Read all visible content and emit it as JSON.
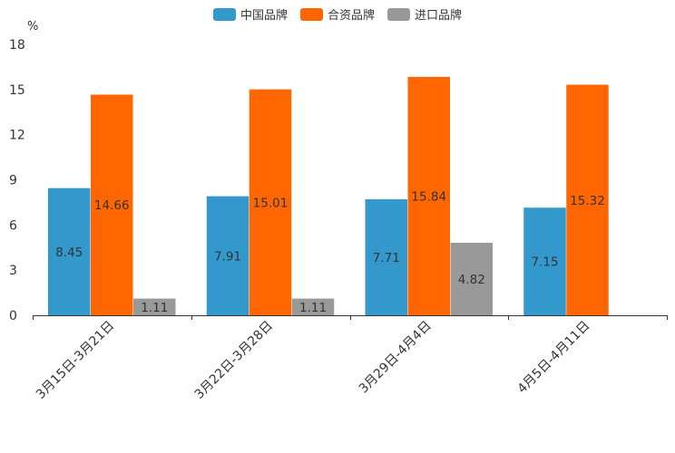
{
  "chart_data": {
    "type": "bar",
    "title": "",
    "xlabel": "",
    "ylabel": "%",
    "ylim": [
      0,
      18
    ],
    "yticks": [
      0,
      3,
      6,
      9,
      12,
      15,
      18
    ],
    "grid": false,
    "legend_position": "top-center",
    "categories": [
      "3月15日-3月21日",
      "3月22日-3月28日",
      "3月29日-4月4日",
      "4月5日-4月11日"
    ],
    "series": [
      {
        "name": "中国品牌",
        "color": "#3399CC",
        "values": [
          8.45,
          7.91,
          7.71,
          7.15
        ]
      },
      {
        "name": "合资品牌",
        "color": "#FF6600",
        "values": [
          14.66,
          15.01,
          15.84,
          15.32
        ]
      },
      {
        "name": "进口品牌",
        "color": "#999999",
        "values": [
          1.11,
          1.11,
          4.82,
          null
        ]
      }
    ]
  }
}
